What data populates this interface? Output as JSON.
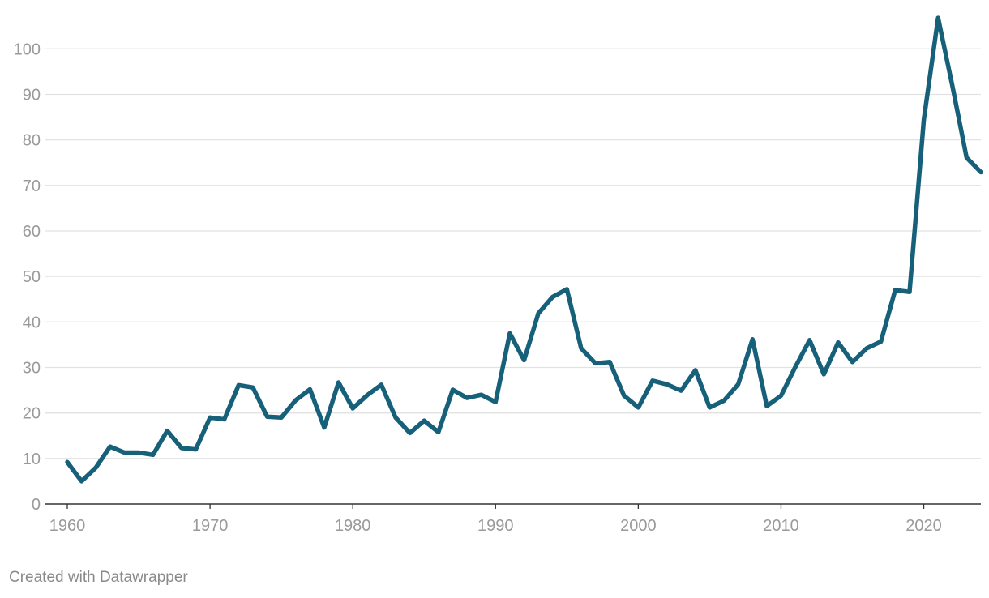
{
  "credit": "Created with Datawrapper",
  "colors": {
    "line": "#17607a",
    "grid": "#e2e2e2",
    "baseline": "#333333",
    "tick_text": "#9a9a9a"
  },
  "chart_data": {
    "type": "line",
    "title": "",
    "xlabel": "",
    "ylabel": "",
    "xlim": [
      1960,
      2024
    ],
    "ylim": [
      0,
      107
    ],
    "grid": true,
    "x_ticks": [
      1960,
      1970,
      1980,
      1990,
      2000,
      2010,
      2020
    ],
    "y_ticks": [
      0,
      10,
      20,
      30,
      40,
      50,
      60,
      70,
      80,
      90,
      100
    ],
    "series": [
      {
        "x": [
          1960,
          1961,
          1962,
          1963,
          1964,
          1965,
          1966,
          1967,
          1968,
          1969,
          1970,
          1971,
          1972,
          1973,
          1974,
          1975,
          1976,
          1977,
          1978,
          1979,
          1980,
          1981,
          1982,
          1983,
          1984,
          1985,
          1986,
          1987,
          1988,
          1989,
          1990,
          1991,
          1992,
          1993,
          1994,
          1995,
          1996,
          1997,
          1998,
          1999,
          2000,
          2001,
          2002,
          2003,
          2004,
          2005,
          2006,
          2007,
          2008,
          2009,
          2010,
          2011,
          2012,
          2013,
          2014,
          2015,
          2016,
          2017,
          2018,
          2019,
          2020,
          2021,
          2022,
          2023,
          2024
        ],
        "values": [
          9.2,
          5.0,
          8.0,
          12.6,
          11.3,
          11.3,
          10.8,
          16.1,
          12.3,
          12.0,
          19.0,
          18.6,
          26.1,
          25.6,
          19.2,
          19.0,
          22.8,
          25.2,
          16.8,
          26.7,
          21.0,
          23.9,
          26.2,
          19.0,
          15.6,
          18.3,
          15.8,
          25.1,
          23.3,
          24.0,
          22.4,
          37.5,
          31.6,
          41.9,
          45.5,
          47.2,
          34.2,
          30.9,
          31.2,
          23.8,
          21.2,
          27.1,
          26.3,
          24.9,
          29.4,
          21.2,
          22.7,
          26.3,
          36.2,
          21.5,
          23.8,
          30.1,
          36.0,
          28.5,
          35.5,
          31.2,
          34.2,
          35.7,
          47.0,
          46.6,
          84.4,
          106.8,
          91.9,
          76.1,
          72.9
        ]
      }
    ]
  }
}
